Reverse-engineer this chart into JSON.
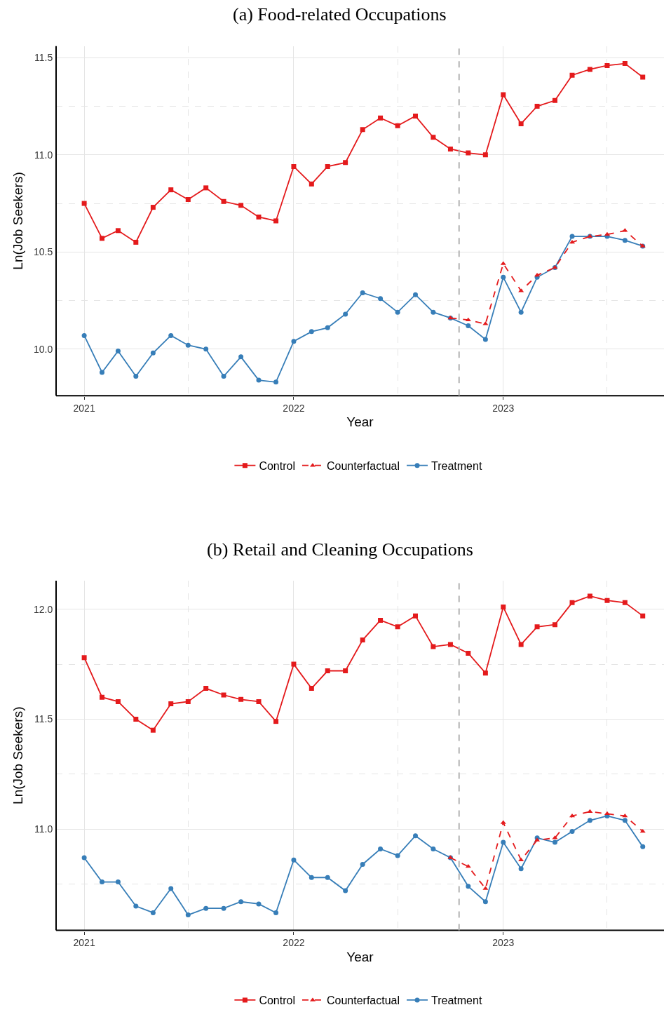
{
  "chart_data": [
    {
      "type": "line",
      "title": "(a) Food-related Occupations",
      "xlabel": "Year",
      "ylabel": "Ln(Job Seekers)",
      "x": [
        "2021-01",
        "2021-02",
        "2021-03",
        "2021-04",
        "2021-05",
        "2021-06",
        "2021-07",
        "2021-08",
        "2021-09",
        "2021-10",
        "2021-11",
        "2021-12",
        "2022-01",
        "2022-02",
        "2022-03",
        "2022-04",
        "2022-05",
        "2022-06",
        "2022-07",
        "2022-08",
        "2022-09",
        "2022-10",
        "2022-11",
        "2022-12",
        "2023-01",
        "2023-02",
        "2023-03",
        "2023-04",
        "2023-05",
        "2023-06",
        "2023-07",
        "2023-08",
        "2023-09"
      ],
      "series": [
        {
          "name": "Control",
          "color": "#e41a1c",
          "marker": "square",
          "line_style": "solid",
          "values": [
            10.75,
            10.57,
            10.61,
            10.55,
            10.73,
            10.82,
            10.77,
            10.83,
            10.76,
            10.74,
            10.68,
            10.66,
            10.94,
            10.85,
            10.94,
            10.96,
            11.13,
            11.19,
            11.15,
            11.2,
            11.09,
            11.03,
            11.01,
            11.0,
            11.31,
            11.16,
            11.25,
            11.28,
            11.41,
            11.44,
            11.46,
            11.47,
            11.4
          ]
        },
        {
          "name": "Counterfactual",
          "color": "#e41a1c",
          "marker": "triangle",
          "line_style": "dashed",
          "x": [
            "2022-10",
            "2022-11",
            "2022-12",
            "2023-01",
            "2023-02",
            "2023-03",
            "2023-04",
            "2023-05",
            "2023-06",
            "2023-07",
            "2023-08",
            "2023-09"
          ],
          "values": [
            10.16,
            10.15,
            10.13,
            10.44,
            10.3,
            10.38,
            10.42,
            10.55,
            10.58,
            10.59,
            10.61,
            10.53
          ]
        },
        {
          "name": "Treatment",
          "color": "#377eb8",
          "marker": "circle",
          "line_style": "solid",
          "values": [
            10.07,
            9.88,
            9.99,
            9.86,
            9.98,
            10.07,
            10.02,
            10.0,
            9.86,
            9.96,
            9.84,
            9.83,
            10.04,
            10.09,
            10.11,
            10.18,
            10.29,
            10.26,
            10.19,
            10.28,
            10.19,
            10.16,
            10.12,
            10.05,
            10.37,
            10.19,
            10.37,
            10.42,
            10.58,
            10.58,
            10.58,
            10.56,
            10.53
          ]
        }
      ],
      "xlim": [
        "2020-11-13",
        "2023-10-08"
      ],
      "xticks": [
        {
          "value": "2021-01-01",
          "label": "2021"
        },
        {
          "value": "2021-07-01",
          "label": null
        },
        {
          "value": "2022-01-01",
          "label": "2022"
        },
        {
          "value": "2022-07-01",
          "label": null
        },
        {
          "value": "2023-01-01",
          "label": "2023"
        },
        {
          "value": "2023-07-01",
          "label": null
        }
      ],
      "ylim": [
        9.76,
        11.56
      ],
      "yticks": [
        {
          "value": 10,
          "label": "10.0"
        },
        {
          "value": 10.25,
          "label": null
        },
        {
          "value": 10.5,
          "label": "10.5"
        },
        {
          "value": 10.75,
          "label": null
        },
        {
          "value": 11,
          "label": "11.0"
        },
        {
          "value": 11.25,
          "label": null
        },
        {
          "value": 11.5,
          "label": "11.5"
        }
      ],
      "ref_lines": [
        {
          "axis": "x",
          "value": "2022-10-16",
          "color": "#b3b3b3",
          "line_style": "dashed"
        }
      ],
      "grid": true,
      "legend": "bottom"
    },
    {
      "type": "line",
      "title": "(b) Retail and Cleaning Occupations",
      "xlabel": "Year",
      "ylabel": "Ln(Job Seekers)",
      "x": [
        "2021-01",
        "2021-02",
        "2021-03",
        "2021-04",
        "2021-05",
        "2021-06",
        "2021-07",
        "2021-08",
        "2021-09",
        "2021-10",
        "2021-11",
        "2021-12",
        "2022-01",
        "2022-02",
        "2022-03",
        "2022-04",
        "2022-05",
        "2022-06",
        "2022-07",
        "2022-08",
        "2022-09",
        "2022-10",
        "2022-11",
        "2022-12",
        "2023-01",
        "2023-02",
        "2023-03",
        "2023-04",
        "2023-05",
        "2023-06",
        "2023-07",
        "2023-08",
        "2023-09"
      ],
      "series": [
        {
          "name": "Control",
          "color": "#e41a1c",
          "marker": "square",
          "line_style": "solid",
          "values": [
            11.78,
            11.6,
            11.58,
            11.5,
            11.45,
            11.57,
            11.58,
            11.64,
            11.61,
            11.59,
            11.58,
            11.49,
            11.75,
            11.64,
            11.72,
            11.72,
            11.86,
            11.95,
            11.92,
            11.97,
            11.83,
            11.84,
            11.8,
            11.71,
            12.01,
            11.84,
            11.92,
            11.93,
            12.03,
            12.06,
            12.04,
            12.03,
            11.97
          ]
        },
        {
          "name": "Counterfactual",
          "color": "#e41a1c",
          "marker": "triangle",
          "line_style": "dashed",
          "x": [
            "2022-10",
            "2022-11",
            "2022-12",
            "2023-01",
            "2023-02",
            "2023-03",
            "2023-04",
            "2023-05",
            "2023-06",
            "2023-07",
            "2023-08",
            "2023-09"
          ],
          "values": [
            10.87,
            10.83,
            10.73,
            11.03,
            10.86,
            10.95,
            10.96,
            11.06,
            11.08,
            11.07,
            11.06,
            10.99
          ]
        },
        {
          "name": "Treatment",
          "color": "#377eb8",
          "marker": "circle",
          "line_style": "solid",
          "values": [
            10.87,
            10.76,
            10.76,
            10.65,
            10.62,
            10.73,
            10.61,
            10.64,
            10.64,
            10.67,
            10.66,
            10.62,
            10.86,
            10.78,
            10.78,
            10.72,
            10.84,
            10.91,
            10.88,
            10.97,
            10.91,
            10.87,
            10.74,
            10.67,
            10.94,
            10.82,
            10.96,
            10.94,
            10.99,
            11.04,
            11.06,
            11.04,
            10.92
          ]
        }
      ],
      "xlim": [
        "2020-11-13",
        "2023-10-08"
      ],
      "xticks": [
        {
          "value": "2021-01-01",
          "label": "2021"
        },
        {
          "value": "2021-07-01",
          "label": null
        },
        {
          "value": "2022-01-01",
          "label": "2022"
        },
        {
          "value": "2022-07-01",
          "label": null
        },
        {
          "value": "2023-01-01",
          "label": "2023"
        },
        {
          "value": "2023-07-01",
          "label": null
        }
      ],
      "ylim": [
        10.54,
        12.13
      ],
      "yticks": [
        {
          "value": 10.75,
          "label": null
        },
        {
          "value": 11,
          "label": "11.0"
        },
        {
          "value": 11.25,
          "label": null
        },
        {
          "value": 11.5,
          "label": "11.5"
        },
        {
          "value": 11.75,
          "label": null
        },
        {
          "value": 12,
          "label": "12.0"
        }
      ],
      "ref_lines": [
        {
          "axis": "x",
          "value": "2022-10-16",
          "color": "#b3b3b3",
          "line_style": "dashed"
        }
      ],
      "grid": true,
      "legend": "bottom"
    }
  ]
}
